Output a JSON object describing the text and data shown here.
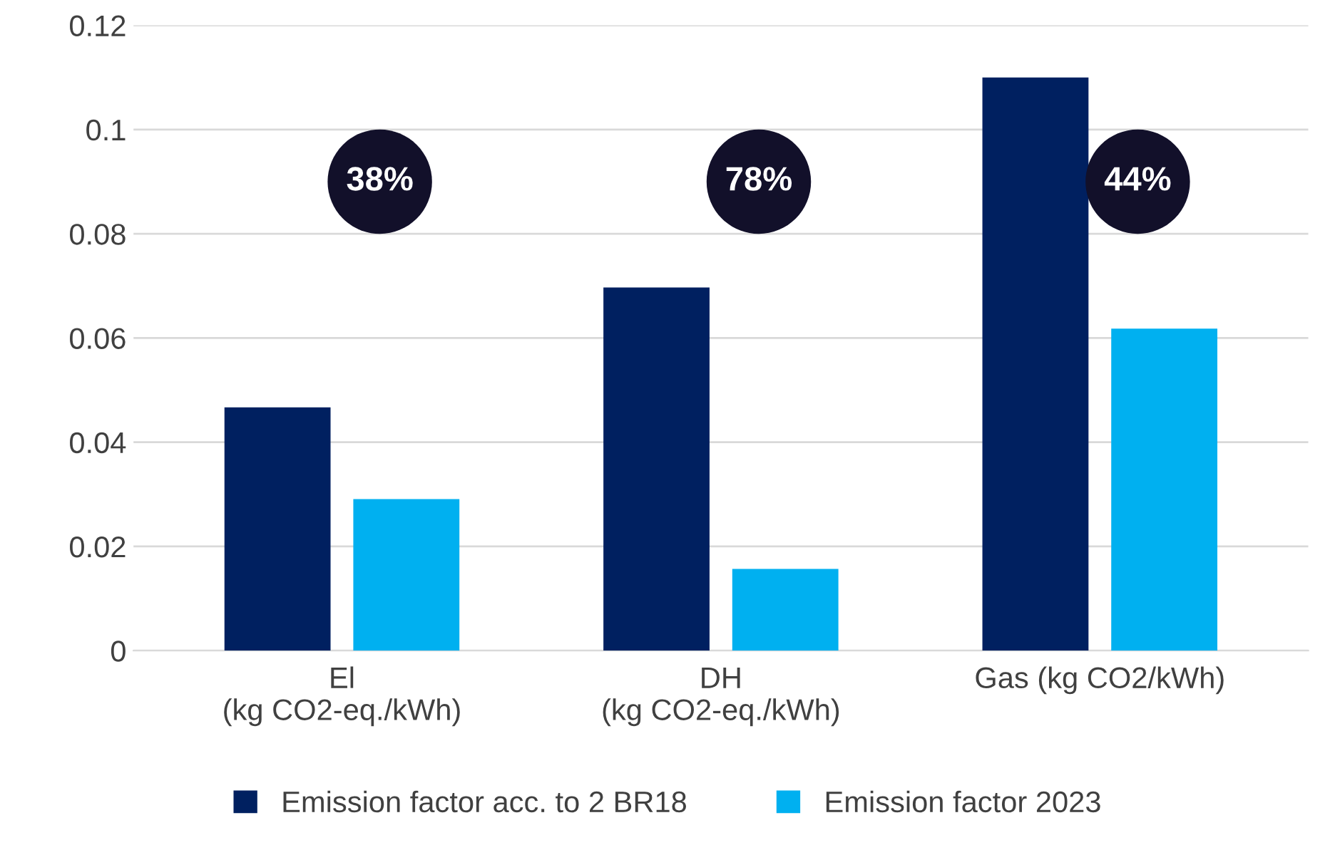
{
  "chart_data": {
    "type": "bar",
    "categories": [
      "El\n(kg CO2-eq./kWh)",
      "DH\n(kg CO2-eq./kWh)",
      "Gas (kg CO2/kWh)"
    ],
    "series": [
      {
        "name": "Emission factor acc. to 2 BR18",
        "color": "#002060",
        "values": [
          0.0467,
          0.0697,
          0.11
        ]
      },
      {
        "name": "Emission factor 2023",
        "color": "#00b0f0",
        "values": [
          0.0291,
          0.0157,
          0.0618
        ]
      }
    ],
    "annotations": [
      "38%",
      "78%",
      "44%"
    ],
    "ylim": [
      0,
      0.12
    ],
    "yticks": [
      0,
      0.02,
      0.04,
      0.06,
      0.08,
      {
        "value": 0.1,
        "label": "0.1"
      },
      0.12
    ],
    "grid": "y",
    "legend": "bottom"
  }
}
